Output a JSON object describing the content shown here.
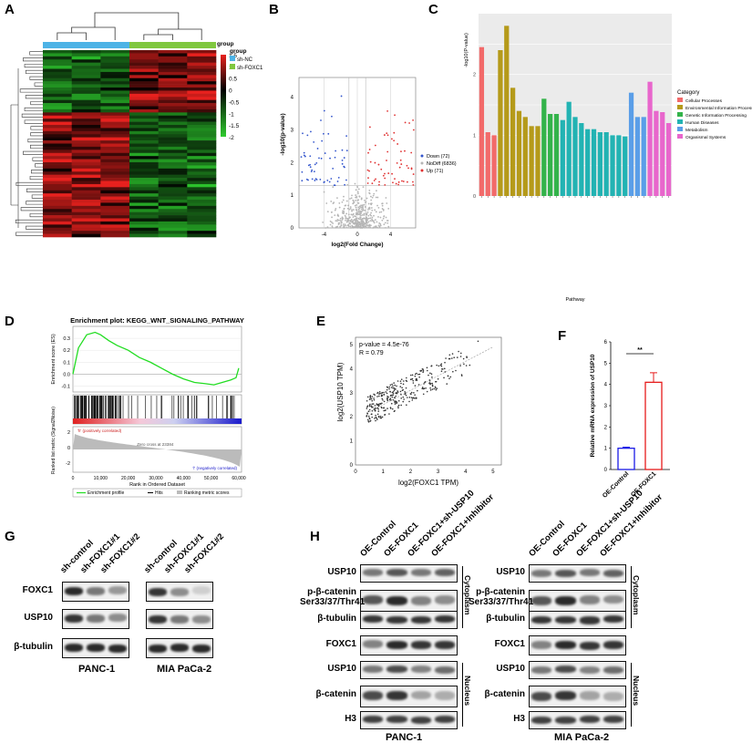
{
  "panels": {
    "A": {
      "letter": "A",
      "legend_title": "group",
      "groups": [
        {
          "label": "sh-NC",
          "color": "#4db3e6"
        },
        {
          "label": "sh-FOXC1",
          "color": "#7fc73f"
        }
      ],
      "colorbar_ticks": [
        "1.5",
        "1",
        "0.5",
        "0",
        "-0.5",
        "-1",
        "-1.5",
        "-2"
      ],
      "colors": {
        "high": "#e8211e",
        "mid": "#000000",
        "low": "#2ecc2e"
      }
    },
    "B": {
      "letter": "B",
      "ylabel": "-log10(p-value)",
      "xlabel": "log2(Fold Change)",
      "yticks": [
        "0",
        "1",
        "2",
        "3",
        "4"
      ],
      "xticks": [
        "-4",
        "0",
        "4"
      ],
      "legend": [
        {
          "label": "Down (72)",
          "color": "#3355cc"
        },
        {
          "label": "NoDiff (6836)",
          "color": "#b5b5b5"
        },
        {
          "label": "Up (71)",
          "color": "#e03030"
        }
      ]
    },
    "C": {
      "letter": "C",
      "ylabel": "-log10(P-value)",
      "xlabel": "Pathway",
      "yticks": [
        "0",
        "1",
        "2"
      ],
      "legend_title": "Category",
      "categories": [
        {
          "label": "Cellular Processes",
          "color": "#f26a6a"
        },
        {
          "label": "Environmental Information Processing",
          "color": "#b59a1a"
        },
        {
          "label": "Genetic Information Processing",
          "color": "#33b34a"
        },
        {
          "label": "Human Diseases",
          "color": "#22b3b3"
        },
        {
          "label": "Metabolism",
          "color": "#5a9ee8"
        },
        {
          "label": "Organismal Systems",
          "color": "#e866cc"
        }
      ]
    },
    "D": {
      "letter": "D",
      "title": "Enrichment plot: KEGG_WNT_SIGNALING_PATHWAY",
      "ylabel_top": "Enrichment score (ES)",
      "ylabel_bottom": "Ranked list metric (Signal2Noise)",
      "xlabel": "Rank in Ordered Dataset",
      "yticks_top": [
        "0.3",
        "0.2",
        "0.1",
        "0.0",
        "-0.1"
      ],
      "yticks_bottom": [
        "2",
        "0",
        "-2"
      ],
      "xticks": [
        "0",
        "10,000",
        "20,000",
        "30,000",
        "40,000",
        "50,000",
        "60,000"
      ],
      "pos_label": "'h' (positively correlated)",
      "neg_label": "'l' (negatively correlated)",
      "zero_cross": "Zero cross at 23384",
      "legend": [
        "Enrichment profile",
        "Hits",
        "Ranking metric scores"
      ]
    },
    "E": {
      "letter": "E",
      "annotation_p": "p-value = 4.5e-76",
      "annotation_r": "R = 0.79",
      "xlabel": "log2(FOXC1 TPM)",
      "ylabel": "log2(USP10 TPM)",
      "xticks": [
        "0",
        "1",
        "2",
        "3",
        "4",
        "5"
      ],
      "yticks": [
        "0",
        "1",
        "2",
        "3",
        "4",
        "5"
      ]
    },
    "F": {
      "letter": "F",
      "ylabel": "Relative mRNA expression of USP10",
      "yticks": [
        "0",
        "1",
        "2",
        "3",
        "4",
        "5",
        "6"
      ],
      "significance": "**",
      "categories": [
        "OE-Control",
        "OE-FOXC1"
      ]
    },
    "G": {
      "letter": "G",
      "lanes": [
        "sh-control",
        "sh-FOXC1#1",
        "sh-FOXC1#2"
      ],
      "rows": [
        "FOXC1",
        "USP10",
        "β-tubulin"
      ],
      "cell_lines": [
        "PANC-1",
        "MIA PaCa-2"
      ]
    },
    "H": {
      "letter": "H",
      "lanes": [
        "OE-Control",
        "OE-FOXC1",
        "OE-FOXC1+sh-USP10",
        "OE-FOXC1+Inhibitor"
      ],
      "rows": [
        "USP10",
        "p-β-catenin",
        "Ser33/37/Thr41",
        "β-tubulin",
        "FOXC1",
        "USP10",
        "β-catenin",
        "H3"
      ],
      "fraction_cyto": "Cytoplasm",
      "fraction_nuc": "Nucleus",
      "cell_lines": [
        "PANC-1",
        "MIA PaCa-2"
      ]
    }
  },
  "chart_data": [
    {
      "type": "bar",
      "panel": "C",
      "ylabel": "-log10(P-value)",
      "xlabel": "Pathway",
      "ylim": [
        0,
        3
      ],
      "values": [
        2.45,
        1.05,
        1.0,
        2.4,
        2.8,
        1.78,
        1.4,
        1.3,
        1.15,
        1.15,
        1.6,
        1.35,
        1.35,
        1.25,
        1.55,
        1.3,
        1.2,
        1.1,
        1.1,
        1.05,
        1.05,
        1.0,
        1.0,
        0.98,
        1.7,
        1.3,
        1.3,
        1.88,
        1.4,
        1.38,
        1.2
      ],
      "series_category": [
        0,
        0,
        0,
        1,
        1,
        1,
        1,
        1,
        1,
        1,
        2,
        2,
        2,
        3,
        3,
        3,
        3,
        3,
        3,
        3,
        3,
        3,
        3,
        3,
        4,
        4,
        4,
        5,
        5,
        5,
        5
      ]
    },
    {
      "type": "bar",
      "panel": "F",
      "categories": [
        "OE-Control",
        "OE-FOXC1"
      ],
      "values": [
        1.0,
        4.1
      ],
      "errors": [
        0.05,
        0.45
      ],
      "ylabel": "Relative mRNA expression of USP10",
      "ylim": [
        0,
        6
      ]
    },
    {
      "type": "line",
      "panel": "D",
      "x": [
        0,
        2000,
        5000,
        8000,
        10000,
        13000,
        16000,
        20000,
        24000,
        28000,
        32000,
        36000,
        40000,
        44000,
        48000,
        51000,
        54000,
        57000,
        59000,
        60000
      ],
      "values": [
        0.0,
        0.22,
        0.33,
        0.35,
        0.33,
        0.28,
        0.24,
        0.2,
        0.14,
        0.1,
        0.05,
        0.0,
        -0.04,
        -0.07,
        -0.08,
        -0.09,
        -0.07,
        -0.05,
        -0.03,
        0.05
      ],
      "ylim": [
        -0.15,
        0.4
      ],
      "xlim": [
        0,
        61000
      ]
    },
    {
      "type": "scatter",
      "panel": "E",
      "xlabel": "log2(FOXC1 TPM)",
      "ylabel": "log2(USP10 TPM)",
      "xlim": [
        0,
        5.3
      ],
      "ylim": [
        0,
        5.3
      ],
      "trend": [
        [
          0.5,
          2.2
        ],
        [
          5.0,
          4.9
        ]
      ]
    }
  ]
}
